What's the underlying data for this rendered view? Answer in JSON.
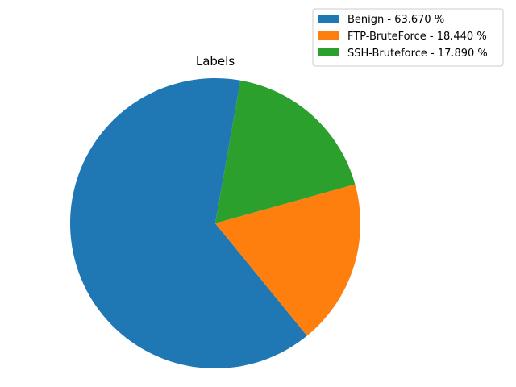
{
  "chart_data": {
    "type": "pie",
    "title": "Labels",
    "slices": [
      {
        "label": "Benign - 63.670 %",
        "value": 63.67,
        "color": "#1f77b4"
      },
      {
        "label": "FTP-BruteForce - 18.440 %",
        "value": 18.44,
        "color": "#ff7f0e"
      },
      {
        "label": "SSH-Bruteforce - 17.890 %",
        "value": 17.89,
        "color": "#2ca02c"
      }
    ],
    "start_angle_deg": 80,
    "direction": "counterclockwise",
    "legend_placement": "top-right"
  }
}
